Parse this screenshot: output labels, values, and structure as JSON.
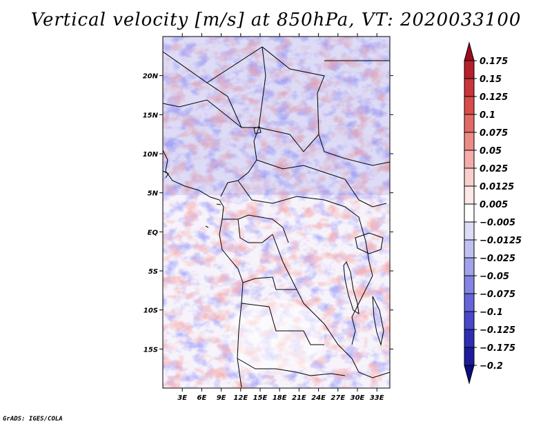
{
  "chart_data": {
    "type": "heatmap",
    "title": "Vertical velocity [m/s] at 850hPa, VT: 2020033100",
    "x_axis": {
      "unit": "degrees east",
      "range": [
        0,
        35
      ],
      "tick_values": [
        3,
        6,
        9,
        12,
        15,
        18,
        21,
        24,
        27,
        30,
        33
      ],
      "tick_labels": [
        "3E",
        "6E",
        "9E",
        "12E",
        "15E",
        "18E",
        "21E",
        "24E",
        "27E",
        "30E",
        "33E"
      ]
    },
    "y_axis": {
      "unit": "degrees north",
      "range": [
        -20,
        25
      ],
      "tick_values": [
        20,
        15,
        10,
        5,
        0,
        -5,
        -10,
        -15
      ],
      "tick_labels": [
        "20N",
        "15N",
        "10N",
        "5N",
        "EQ",
        "5S",
        "10S",
        "15S"
      ]
    },
    "colorbar": {
      "labels": [
        "0.175",
        "0.15",
        "0.125",
        "0.1",
        "0.075",
        "0.05",
        "0.025",
        "0.0125",
        "0.005",
        "−0.005",
        "−0.0125",
        "−0.025",
        "−0.05",
        "−0.075",
        "−0.1",
        "−0.125",
        "−0.175",
        "−0.2"
      ],
      "colors": [
        "#9b0c1c",
        "#b5202a",
        "#c8353a",
        "#d84c4c",
        "#e26a66",
        "#ec8c86",
        "#f4adaa",
        "#f9cfcc",
        "#fce8e6",
        "#ffffff",
        "#dcdcf6",
        "#c0c0f0",
        "#a2a2ea",
        "#8484e2",
        "#6666d8",
        "#4848c8",
        "#2e2eb4",
        "#1c1c9c",
        "#0c0c7e"
      ]
    },
    "credit": "GrADS: IGES/COLA"
  }
}
